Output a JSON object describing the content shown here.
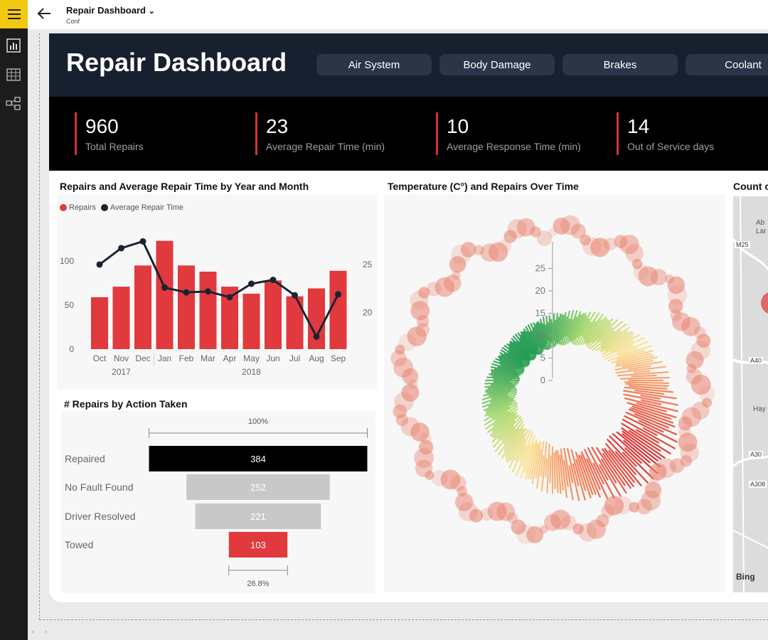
{
  "app": {
    "report_title": "Repair Dashboard",
    "report_subtitle": "Conf",
    "dropdown_glyph": "⌄"
  },
  "icons": {
    "hamburger": "menu-icon",
    "back": "back-arrow-icon",
    "report_view": "bar-chart-icon",
    "data_view": "table-icon",
    "model_view": "model-icon",
    "bing": "bing-logo"
  },
  "colors": {
    "brand_yellow": "#f2c811",
    "header_navy": "#16202f",
    "accent_red": "#d13438",
    "bar_red": "#e03a3e",
    "line_navy": "#1a2332",
    "funnel_black": "#000000",
    "funnel_gray": "#c8c8c8"
  },
  "dashboard": {
    "title": "Repair Dashboard",
    "filters": [
      "Air System",
      "Body Damage",
      "Brakes",
      "Coolant"
    ]
  },
  "kpis": [
    {
      "value": "960",
      "label": "Total Repairs"
    },
    {
      "value": "23",
      "label": "Average Repair Time (min)"
    },
    {
      "value": "10",
      "label": "Average Response Time (min)"
    },
    {
      "value": "14",
      "label": "Out of Service days"
    }
  ],
  "combo_chart": {
    "title": "Repairs and Average Repair Time by Year and Month",
    "legend": [
      "Repairs",
      "Average Repair Time"
    ],
    "months": [
      "Oct",
      "Nov",
      "Dec",
      "Jan",
      "Feb",
      "Mar",
      "Apr",
      "May",
      "Jun",
      "Jul",
      "Aug",
      "Sep"
    ],
    "years": [
      "2017",
      "2018"
    ],
    "left_ticks": [
      "0",
      "50",
      "100"
    ],
    "right_ticks": [
      "20",
      "25"
    ]
  },
  "radial_chart": {
    "title": "Temperature (C°) and Repairs Over Time",
    "ticks": [
      "0",
      "5",
      "10",
      "15",
      "20",
      "25"
    ]
  },
  "map": {
    "title": "Count o",
    "labels": [
      "Ab",
      "Lar",
      "M25",
      "A40",
      "Hay",
      "A30",
      "A308",
      "Bing"
    ]
  },
  "funnel": {
    "title": "# Repairs by Action Taken",
    "top_percent": "100%",
    "bottom_percent": "26.8%",
    "stages": [
      {
        "label": "Repaired",
        "value": "384"
      },
      {
        "label": "No Fault Found",
        "value": "252"
      },
      {
        "label": "Driver Resolved",
        "value": "221"
      },
      {
        "label": "Towed",
        "value": "103"
      }
    ]
  },
  "chart_data": [
    {
      "type": "bar",
      "title": "Repairs and Average Repair Time by Year and Month",
      "categories": [
        "Oct",
        "Nov",
        "Dec",
        "Jan",
        "Feb",
        "Mar",
        "Apr",
        "May",
        "Jun",
        "Jul",
        "Aug",
        "Sep"
      ],
      "x_groups": [
        {
          "label": "2017",
          "span": [
            "Oct",
            "Dec"
          ]
        },
        {
          "label": "2018",
          "span": [
            "Jan",
            "Sep"
          ]
        }
      ],
      "series": [
        {
          "name": "Repairs",
          "type": "bar",
          "axis": "left",
          "color": "#e03a3e",
          "values": [
            59,
            71,
            95,
            123,
            95,
            88,
            71,
            63,
            78,
            60,
            69,
            89
          ]
        },
        {
          "name": "Average Repair Time",
          "type": "line",
          "axis": "right",
          "color": "#1a2332",
          "values": [
            25.0,
            26.7,
            27.4,
            22.6,
            22.1,
            22.2,
            21.6,
            23.0,
            23.4,
            21.8,
            17.5,
            21.9
          ]
        }
      ],
      "ylim_left": [
        0,
        130
      ],
      "ylim_right": [
        16.2,
        28.1
      ],
      "legend_position": "top-left",
      "grid": false
    },
    {
      "type": "bar",
      "title": "# Repairs by Action Taken",
      "categories": [
        "Repaired",
        "No Fault Found",
        "Driver Resolved",
        "Towed"
      ],
      "values": [
        384,
        252,
        221,
        103
      ],
      "percent_of_first": [
        "100%",
        "26.8%"
      ]
    }
  ]
}
